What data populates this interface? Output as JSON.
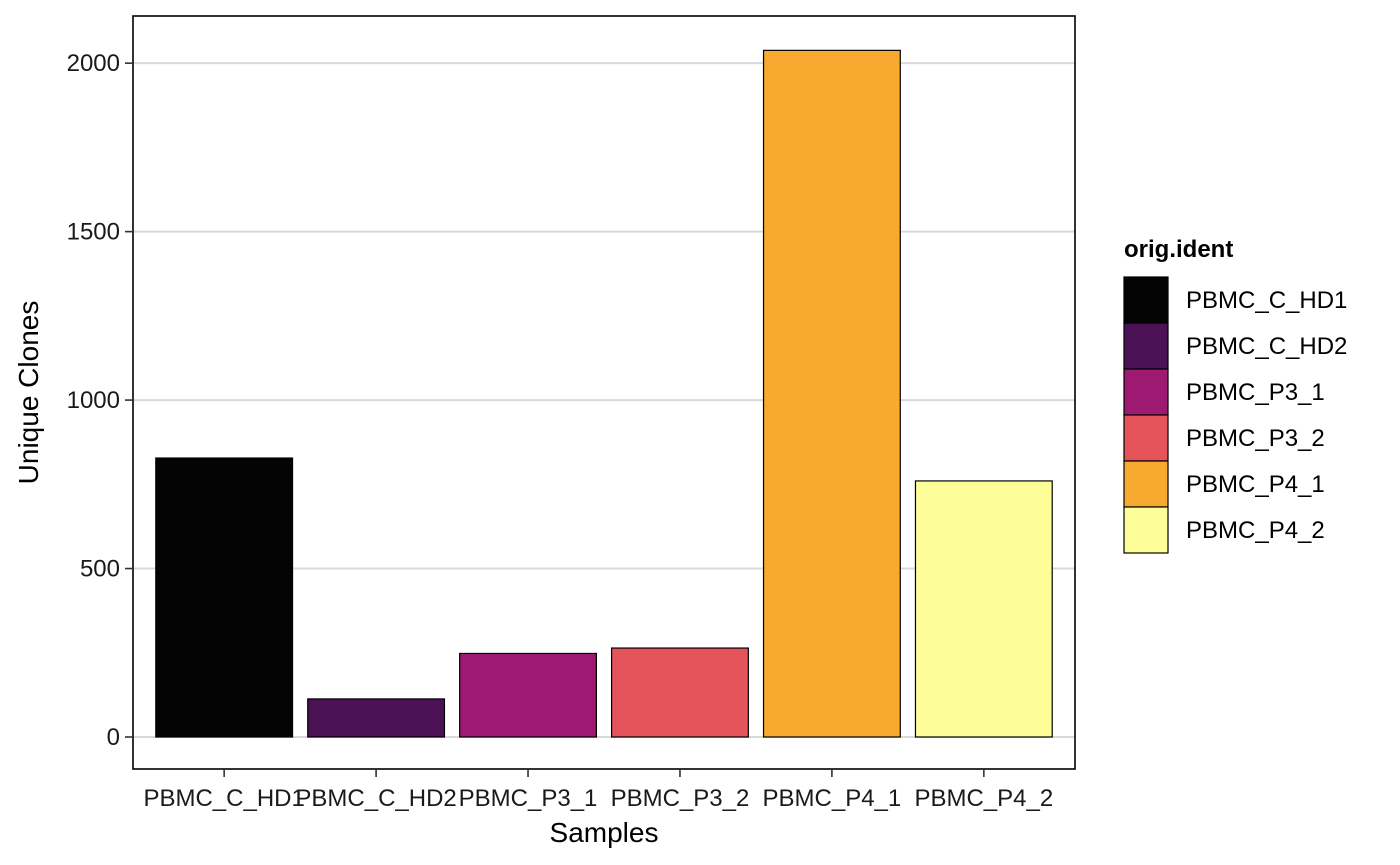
{
  "chart_data": {
    "type": "bar",
    "categories": [
      "PBMC_C_HD1",
      "PBMC_C_HD2",
      "PBMC_P3_1",
      "PBMC_P3_2",
      "PBMC_P4_1",
      "PBMC_P4_2"
    ],
    "values": [
      828,
      113,
      248,
      264,
      2038,
      760
    ],
    "colors": [
      "#040404",
      "#4b1155",
      "#9e1a72",
      "#e5545a",
      "#f8a92f",
      "#fefe98"
    ],
    "xlabel": "Samples",
    "ylabel": "Unique Clones",
    "ylim": [
      -95,
      2140
    ],
    "yticks": [
      0,
      500,
      1000,
      1500,
      2000
    ],
    "grid": "horizontal major",
    "legend": {
      "title": "orig.ident",
      "placement": "right",
      "entries": [
        "PBMC_C_HD1",
        "PBMC_C_HD2",
        "PBMC_P3_1",
        "PBMC_P3_2",
        "PBMC_P4_1",
        "PBMC_P4_2"
      ]
    }
  }
}
